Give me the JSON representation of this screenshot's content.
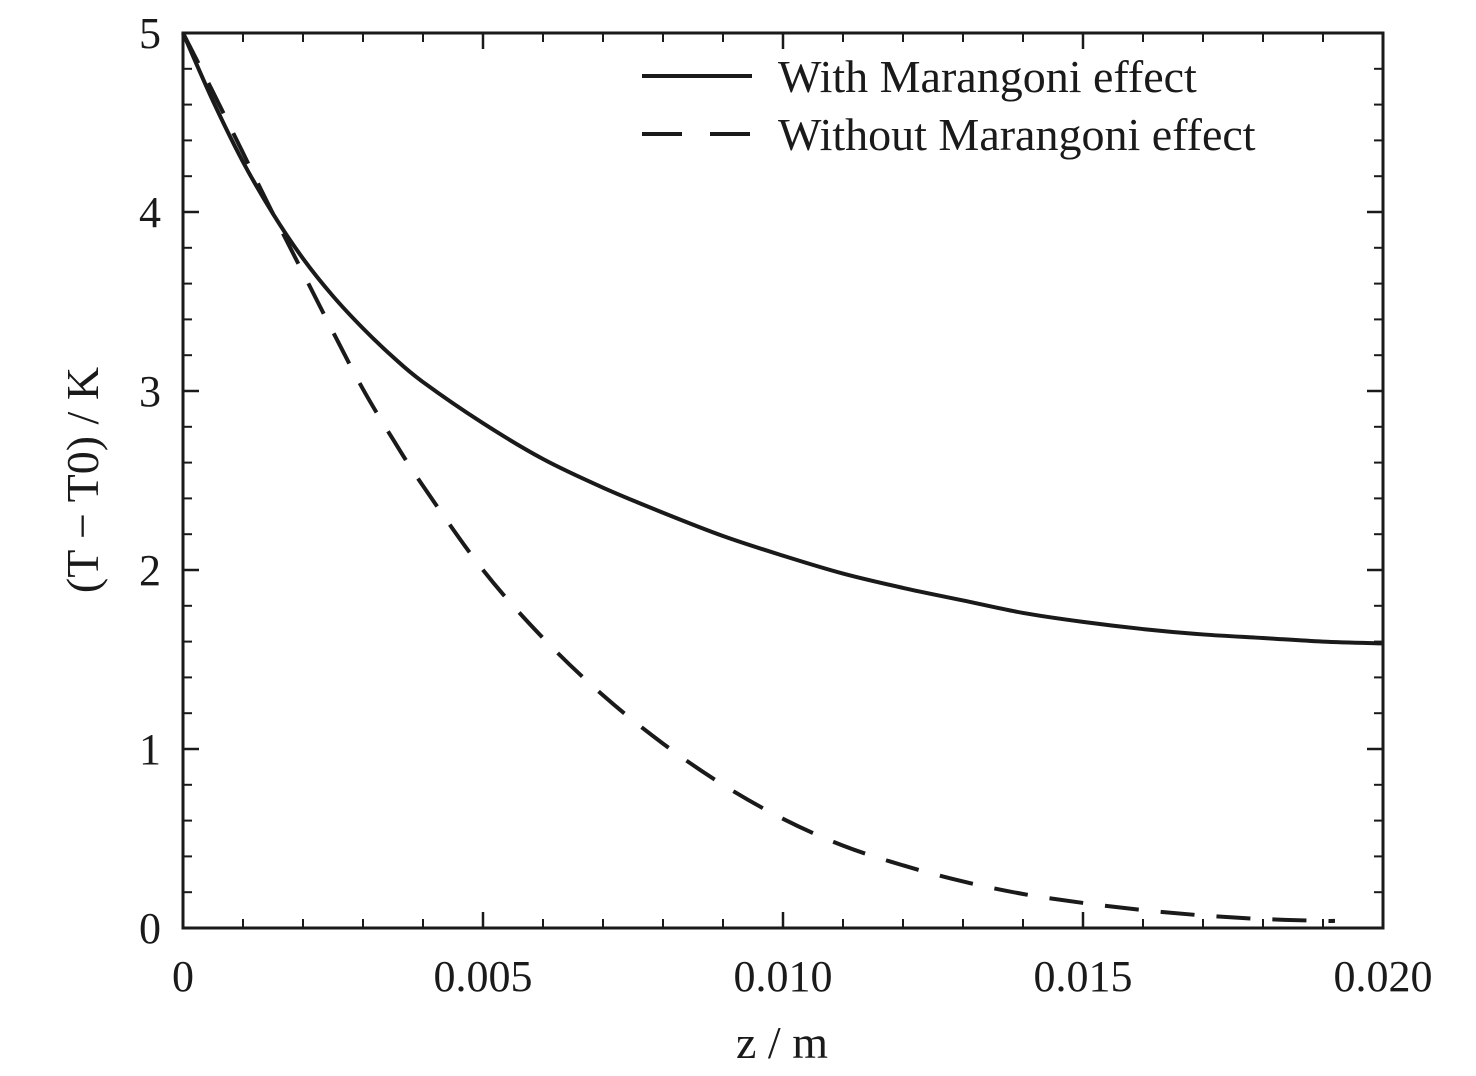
{
  "chart_data": {
    "type": "line",
    "xlabel": "z / m",
    "ylabel": "(T − T0) / K",
    "xlim": [
      0,
      0.02
    ],
    "ylim": [
      0,
      5
    ],
    "x_ticks": [
      0,
      0.005,
      0.01,
      0.015,
      0.02
    ],
    "x_tick_labels": [
      "0",
      "0.005",
      "0.010",
      "0.015",
      "0.020"
    ],
    "y_ticks": [
      0,
      1,
      2,
      3,
      4,
      5
    ],
    "y_tick_labels": [
      "0",
      "1",
      "2",
      "3",
      "4",
      "5"
    ],
    "grid": false,
    "legend_position": "top-right",
    "series": [
      {
        "name": "With Marangoni effect",
        "style": "solid",
        "color": "#1a1a1a",
        "x": [
          0,
          0.0005,
          0.001,
          0.0015,
          0.002,
          0.0025,
          0.003,
          0.0035,
          0.004,
          0.005,
          0.006,
          0.007,
          0.008,
          0.009,
          0.01,
          0.011,
          0.012,
          0.013,
          0.014,
          0.015,
          0.016,
          0.017,
          0.018,
          0.019,
          0.02
        ],
        "y": [
          5.0,
          4.62,
          4.28,
          3.99,
          3.74,
          3.53,
          3.35,
          3.19,
          3.05,
          2.82,
          2.62,
          2.46,
          2.32,
          2.19,
          2.08,
          1.98,
          1.9,
          1.83,
          1.76,
          1.71,
          1.67,
          1.64,
          1.62,
          1.6,
          1.59
        ]
      },
      {
        "name": "Without Marangoni effect",
        "style": "dashed",
        "color": "#1a1a1a",
        "x": [
          0,
          0.0005,
          0.001,
          0.0015,
          0.002,
          0.0025,
          0.003,
          0.0035,
          0.004,
          0.005,
          0.006,
          0.007,
          0.008,
          0.009,
          0.01,
          0.011,
          0.012,
          0.013,
          0.014,
          0.015,
          0.016,
          0.017,
          0.018,
          0.019,
          0.0192
        ],
        "y": [
          5.0,
          4.67,
          4.33,
          3.99,
          3.66,
          3.33,
          3.01,
          2.73,
          2.47,
          2.0,
          1.62,
          1.3,
          1.03,
          0.8,
          0.61,
          0.46,
          0.35,
          0.26,
          0.19,
          0.14,
          0.1,
          0.07,
          0.05,
          0.04,
          0.04
        ]
      }
    ]
  }
}
